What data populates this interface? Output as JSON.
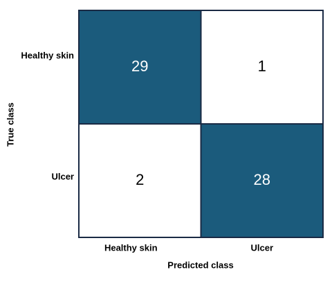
{
  "chart_data": {
    "type": "heatmap",
    "x_label": "Predicted class",
    "y_label": "True class",
    "x_categories": [
      "Healthy skin",
      "Ulcer"
    ],
    "y_categories": [
      "Healthy skin",
      "Ulcer"
    ],
    "values": [
      [
        29,
        1
      ],
      [
        2,
        28
      ]
    ],
    "colors": [
      [
        "#1b5b7c",
        "#ffffff"
      ],
      [
        "#ffffff",
        "#1b5b7c"
      ]
    ],
    "border_color": "#1a2a44"
  }
}
